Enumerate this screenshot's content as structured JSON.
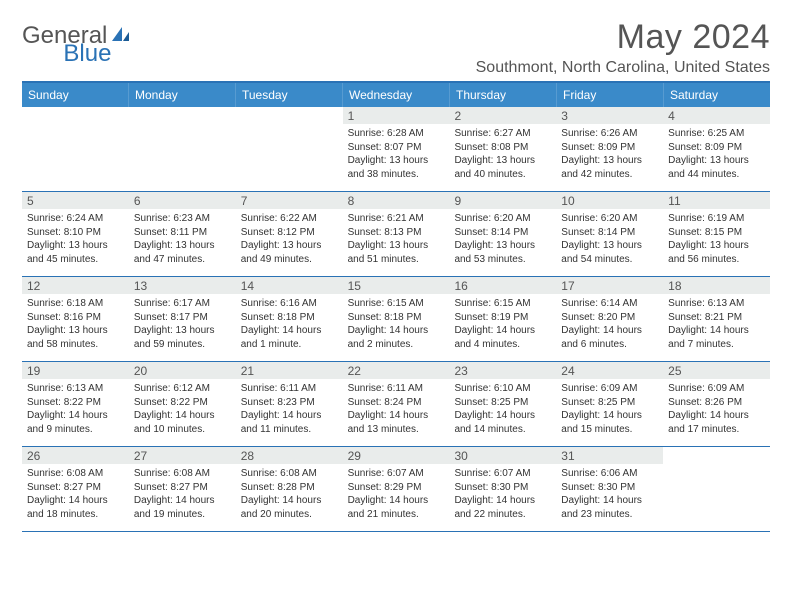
{
  "logo": {
    "text1": "General",
    "text2": "Blue"
  },
  "title": "May 2024",
  "location": "Southmont, North Carolina, United States",
  "colors": {
    "header_bg": "#3a8ac9",
    "header_text": "#ffffff",
    "rule": "#2a72b5",
    "daynum_bg": "#e9eceb",
    "text": "#333333",
    "logo_blue": "#2a72b5"
  },
  "weekdays": [
    "Sunday",
    "Monday",
    "Tuesday",
    "Wednesday",
    "Thursday",
    "Friday",
    "Saturday"
  ],
  "weeks": [
    [
      {
        "n": "",
        "sr": "",
        "ss": "",
        "dl": ""
      },
      {
        "n": "",
        "sr": "",
        "ss": "",
        "dl": ""
      },
      {
        "n": "",
        "sr": "",
        "ss": "",
        "dl": ""
      },
      {
        "n": "1",
        "sr": "6:28 AM",
        "ss": "8:07 PM",
        "dl": "13 hours and 38 minutes."
      },
      {
        "n": "2",
        "sr": "6:27 AM",
        "ss": "8:08 PM",
        "dl": "13 hours and 40 minutes."
      },
      {
        "n": "3",
        "sr": "6:26 AM",
        "ss": "8:09 PM",
        "dl": "13 hours and 42 minutes."
      },
      {
        "n": "4",
        "sr": "6:25 AM",
        "ss": "8:09 PM",
        "dl": "13 hours and 44 minutes."
      }
    ],
    [
      {
        "n": "5",
        "sr": "6:24 AM",
        "ss": "8:10 PM",
        "dl": "13 hours and 45 minutes."
      },
      {
        "n": "6",
        "sr": "6:23 AM",
        "ss": "8:11 PM",
        "dl": "13 hours and 47 minutes."
      },
      {
        "n": "7",
        "sr": "6:22 AM",
        "ss": "8:12 PM",
        "dl": "13 hours and 49 minutes."
      },
      {
        "n": "8",
        "sr": "6:21 AM",
        "ss": "8:13 PM",
        "dl": "13 hours and 51 minutes."
      },
      {
        "n": "9",
        "sr": "6:20 AM",
        "ss": "8:14 PM",
        "dl": "13 hours and 53 minutes."
      },
      {
        "n": "10",
        "sr": "6:20 AM",
        "ss": "8:14 PM",
        "dl": "13 hours and 54 minutes."
      },
      {
        "n": "11",
        "sr": "6:19 AM",
        "ss": "8:15 PM",
        "dl": "13 hours and 56 minutes."
      }
    ],
    [
      {
        "n": "12",
        "sr": "6:18 AM",
        "ss": "8:16 PM",
        "dl": "13 hours and 58 minutes."
      },
      {
        "n": "13",
        "sr": "6:17 AM",
        "ss": "8:17 PM",
        "dl": "13 hours and 59 minutes."
      },
      {
        "n": "14",
        "sr": "6:16 AM",
        "ss": "8:18 PM",
        "dl": "14 hours and 1 minute."
      },
      {
        "n": "15",
        "sr": "6:15 AM",
        "ss": "8:18 PM",
        "dl": "14 hours and 2 minutes."
      },
      {
        "n": "16",
        "sr": "6:15 AM",
        "ss": "8:19 PM",
        "dl": "14 hours and 4 minutes."
      },
      {
        "n": "17",
        "sr": "6:14 AM",
        "ss": "8:20 PM",
        "dl": "14 hours and 6 minutes."
      },
      {
        "n": "18",
        "sr": "6:13 AM",
        "ss": "8:21 PM",
        "dl": "14 hours and 7 minutes."
      }
    ],
    [
      {
        "n": "19",
        "sr": "6:13 AM",
        "ss": "8:22 PM",
        "dl": "14 hours and 9 minutes."
      },
      {
        "n": "20",
        "sr": "6:12 AM",
        "ss": "8:22 PM",
        "dl": "14 hours and 10 minutes."
      },
      {
        "n": "21",
        "sr": "6:11 AM",
        "ss": "8:23 PM",
        "dl": "14 hours and 11 minutes."
      },
      {
        "n": "22",
        "sr": "6:11 AM",
        "ss": "8:24 PM",
        "dl": "14 hours and 13 minutes."
      },
      {
        "n": "23",
        "sr": "6:10 AM",
        "ss": "8:25 PM",
        "dl": "14 hours and 14 minutes."
      },
      {
        "n": "24",
        "sr": "6:09 AM",
        "ss": "8:25 PM",
        "dl": "14 hours and 15 minutes."
      },
      {
        "n": "25",
        "sr": "6:09 AM",
        "ss": "8:26 PM",
        "dl": "14 hours and 17 minutes."
      }
    ],
    [
      {
        "n": "26",
        "sr": "6:08 AM",
        "ss": "8:27 PM",
        "dl": "14 hours and 18 minutes."
      },
      {
        "n": "27",
        "sr": "6:08 AM",
        "ss": "8:27 PM",
        "dl": "14 hours and 19 minutes."
      },
      {
        "n": "28",
        "sr": "6:08 AM",
        "ss": "8:28 PM",
        "dl": "14 hours and 20 minutes."
      },
      {
        "n": "29",
        "sr": "6:07 AM",
        "ss": "8:29 PM",
        "dl": "14 hours and 21 minutes."
      },
      {
        "n": "30",
        "sr": "6:07 AM",
        "ss": "8:30 PM",
        "dl": "14 hours and 22 minutes."
      },
      {
        "n": "31",
        "sr": "6:06 AM",
        "ss": "8:30 PM",
        "dl": "14 hours and 23 minutes."
      },
      {
        "n": "",
        "sr": "",
        "ss": "",
        "dl": ""
      }
    ]
  ],
  "labels": {
    "sunrise": "Sunrise: ",
    "sunset": "Sunset: ",
    "daylight": "Daylight: "
  }
}
